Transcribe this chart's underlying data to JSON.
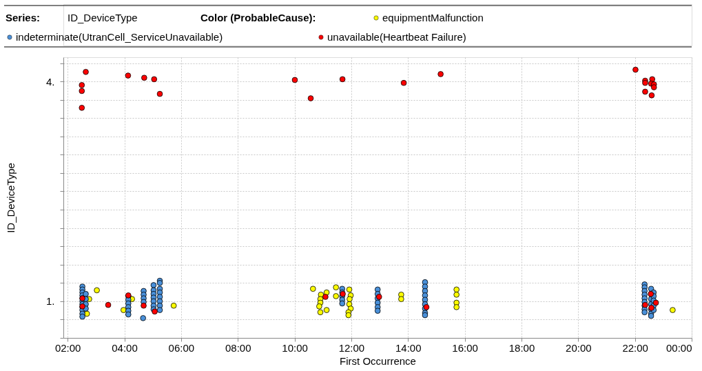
{
  "chart_data": {
    "type": "scatter",
    "xlabel": "First Occurrence",
    "ylabel": "ID_DeviceType",
    "legend_title": "Color (ProbableCause):",
    "legend": "top",
    "marker": "circle",
    "grid": true,
    "annotations": [
      "Series:",
      "ID_DeviceType"
    ],
    "xlim": [
      1.85,
      24
    ],
    "xticks": [
      {
        "value": 2,
        "label": "02:00"
      },
      {
        "value": 4,
        "label": "04:00"
      },
      {
        "value": 6,
        "label": "06:00"
      },
      {
        "value": 8,
        "label": "08:00"
      },
      {
        "value": 10,
        "label": "10:00"
      },
      {
        "value": 12,
        "label": "12:00"
      },
      {
        "value": 14,
        "label": "14:00"
      },
      {
        "value": 16,
        "label": "16:00"
      },
      {
        "value": 18,
        "label": "18:00"
      },
      {
        "value": 20,
        "label": "20:00"
      },
      {
        "value": 22,
        "label": "22:00"
      },
      {
        "value": 24,
        "label": "00:00"
      }
    ],
    "ylim": [
      0.5,
      4.33
    ],
    "yticks": [
      {
        "value": 0.5,
        "label": null
      },
      {
        "value": 0.75,
        "label": null
      },
      {
        "value": 1,
        "label": "1."
      },
      {
        "value": 1.25,
        "label": null
      },
      {
        "value": 1.5,
        "label": null
      },
      {
        "value": 1.75,
        "label": null
      },
      {
        "value": 2,
        "label": null
      },
      {
        "value": 2.25,
        "label": null
      },
      {
        "value": 2.5,
        "label": null
      },
      {
        "value": 2.75,
        "label": null
      },
      {
        "value": 3,
        "label": null
      },
      {
        "value": 3.25,
        "label": null
      },
      {
        "value": 3.5,
        "label": null
      },
      {
        "value": 3.75,
        "label": null
      },
      {
        "value": 4,
        "label": "4."
      },
      {
        "value": 4.25,
        "label": null
      }
    ],
    "series": [
      {
        "name": "equipmentMalfunction",
        "color": "#ffff00",
        "x": [
          3.03,
          2.76,
          2.68,
          4.27,
          3.97,
          5.74,
          10.65,
          10.93,
          10.91,
          10.91,
          10.87,
          10.91,
          11.13,
          11.13,
          11.46,
          11.46,
          11.93,
          11.98,
          11.94,
          11.93,
          11.98,
          11.9,
          11.9,
          13.76,
          13.76,
          15.71,
          15.71,
          15.71,
          15.71,
          23.33
        ],
        "values": [
          1.15,
          1.03,
          0.83,
          1.03,
          0.88,
          0.94,
          1.17,
          1.09,
          1.03,
          0.98,
          0.93,
          0.85,
          0.88,
          1.12,
          1.19,
          1.07,
          1.16,
          1.08,
          1.03,
          0.96,
          0.9,
          0.85,
          0.81,
          1.09,
          1.03,
          1.16,
          1.09,
          0.98,
          0.92,
          0.88
        ]
      },
      {
        "name": "indeterminate(UtranCell_ServiceUnavailable)",
        "color": "#4a90d9",
        "x": [
          2.52,
          2.52,
          2.52,
          2.52,
          2.52,
          2.52,
          2.52,
          2.52,
          2.52,
          2.52,
          2.52,
          2.64,
          2.64,
          2.64,
          2.64,
          4.14,
          4.14,
          4.14,
          4.14,
          4.14,
          4.14,
          4.66,
          4.68,
          4.68,
          4.68,
          4.68,
          5.03,
          5.03,
          5.03,
          5.03,
          5.03,
          5.03,
          5.03,
          5.25,
          5.25,
          5.25,
          5.25,
          5.25,
          5.25,
          5.25,
          5.25,
          11.68,
          11.68,
          11.68,
          11.68,
          11.68,
          12.93,
          12.93,
          12.93,
          12.93,
          12.93,
          12.93,
          14.6,
          14.6,
          14.6,
          14.6,
          14.6,
          14.6,
          14.6,
          14.6,
          14.6,
          22.34,
          22.34,
          22.34,
          22.34,
          22.34,
          22.34,
          22.34,
          22.34,
          22.34,
          22.57,
          22.57,
          22.57,
          22.57,
          22.57,
          22.57,
          22.57,
          22.66,
          22.66,
          22.66,
          22.66,
          22.66
        ],
        "values": [
          1.2,
          1.16,
          1.12,
          1.08,
          1.04,
          1.0,
          0.96,
          0.92,
          0.88,
          0.83,
          0.79,
          1.1,
          1.03,
          0.96,
          0.9,
          1.07,
          1.02,
          0.97,
          0.92,
          0.87,
          0.82,
          0.77,
          1.14,
          1.09,
          1.04,
          0.99,
          1.22,
          1.15,
          1.1,
          1.05,
          1.0,
          0.94,
          0.89,
          1.28,
          1.25,
          1.17,
          1.12,
          1.06,
          1.0,
          0.94,
          0.88,
          1.17,
          1.12,
          1.07,
          1.02,
          0.97,
          1.16,
          1.1,
          1.04,
          0.98,
          0.92,
          0.87,
          1.26,
          1.2,
          1.14,
          1.08,
          1.02,
          0.96,
          0.9,
          0.84,
          0.81,
          1.23,
          1.19,
          1.14,
          1.09,
          1.04,
          0.99,
          0.94,
          0.89,
          0.85,
          1.17,
          1.1,
          1.03,
          0.96,
          0.89,
          0.83,
          0.8,
          1.12,
          1.07,
          1.01,
          0.94,
          0.88
        ]
      },
      {
        "name": "unavailable(Heartbeat Failure)",
        "color": "#ff0000",
        "x": [
          2.64,
          2.5,
          2.5,
          2.5,
          4.13,
          4.7,
          5.05,
          5.25,
          10.01,
          10.57,
          11.69,
          13.85,
          15.15,
          22.02,
          22.36,
          22.36,
          22.61,
          22.57,
          22.67,
          22.67,
          22.36,
          22.59,
          2.52,
          2.52,
          3.43,
          4.14,
          4.68,
          5.07,
          11.09,
          11.7,
          12.98,
          14.65,
          22.36,
          22.74,
          22.58,
          22.56
        ],
        "values": [
          4.13,
          3.95,
          3.87,
          3.64,
          4.08,
          4.05,
          4.03,
          3.83,
          4.02,
          3.77,
          4.03,
          3.98,
          4.1,
          4.16,
          4.01,
          3.98,
          4.03,
          3.97,
          3.96,
          3.92,
          3.86,
          3.81,
          1.04,
          0.93,
          0.95,
          1.08,
          0.94,
          0.86,
          1.06,
          1.1,
          1.06,
          0.92,
          0.95,
          0.98,
          0.91,
          1.1
        ]
      }
    ]
  }
}
